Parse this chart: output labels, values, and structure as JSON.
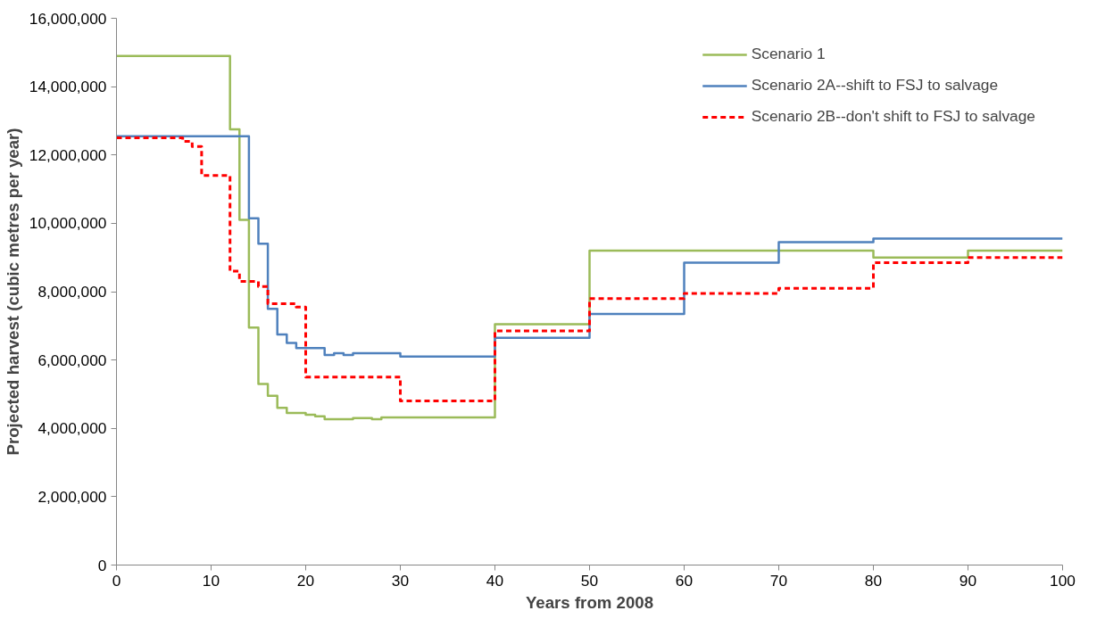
{
  "chart_data": {
    "type": "step",
    "xlabel": "Years from 2008",
    "ylabel": "Projected harvest (cubic metres per year)",
    "xlim": [
      0,
      100
    ],
    "xticks": [
      0,
      10,
      20,
      30,
      40,
      50,
      60,
      70,
      80,
      90,
      100
    ],
    "ylim": [
      0,
      16000000
    ],
    "yticks": [
      {
        "value": 0,
        "label": "0"
      },
      {
        "value": 2000000,
        "label": "2,000,000"
      },
      {
        "value": 4000000,
        "label": "4,000,000"
      },
      {
        "value": 6000000,
        "label": "6,000,000"
      },
      {
        "value": 8000000,
        "label": "8,000,000"
      },
      {
        "value": 10000000,
        "label": "10,000,000"
      },
      {
        "value": 12000000,
        "label": "12,000,000"
      },
      {
        "value": 14000000,
        "label": "14,000,000"
      },
      {
        "value": 16000000,
        "label": "16,000,000"
      }
    ],
    "grid": false,
    "legend": "top right",
    "marker": "none",
    "series": [
      {
        "name": "Scenario 1",
        "color": "#9bbb59",
        "line_style": "solid",
        "x": [
          0,
          12,
          13,
          14,
          15,
          16,
          17,
          18,
          20,
          21,
          22,
          25,
          27,
          28,
          40,
          50,
          80,
          90,
          100
        ],
        "values": [
          14900000,
          12750000,
          10100000,
          6950000,
          5300000,
          4950000,
          4600000,
          4450000,
          4400000,
          4350000,
          4270000,
          4300000,
          4270000,
          4320000,
          7050000,
          9200000,
          9000000,
          9200000,
          9200000
        ]
      },
      {
        "name": "Scenario 2A--shift to FSJ to salvage",
        "color": "#4f81bd",
        "line_style": "solid",
        "x": [
          0,
          14,
          15,
          16,
          17,
          18,
          19,
          22,
          23,
          24,
          25,
          30,
          40,
          50,
          60,
          70,
          80,
          100
        ],
        "values": [
          12550000,
          10150000,
          9400000,
          7500000,
          6750000,
          6500000,
          6350000,
          6150000,
          6200000,
          6150000,
          6200000,
          6100000,
          6650000,
          7350000,
          8850000,
          9450000,
          9550000,
          9550000
        ]
      },
      {
        "name": "Scenario 2B--don't shift to FSJ to salvage",
        "color": "#ff0000",
        "line_style": "dashed",
        "x": [
          0,
          7,
          8,
          9,
          12,
          13,
          15,
          16,
          19,
          20,
          30,
          40,
          50,
          60,
          70,
          80,
          90,
          100
        ],
        "values": [
          12500000,
          12400000,
          12250000,
          11400000,
          8600000,
          8300000,
          8150000,
          7650000,
          7550000,
          5500000,
          4800000,
          6850000,
          7800000,
          7950000,
          8100000,
          8850000,
          9000000,
          9000000
        ]
      }
    ]
  }
}
